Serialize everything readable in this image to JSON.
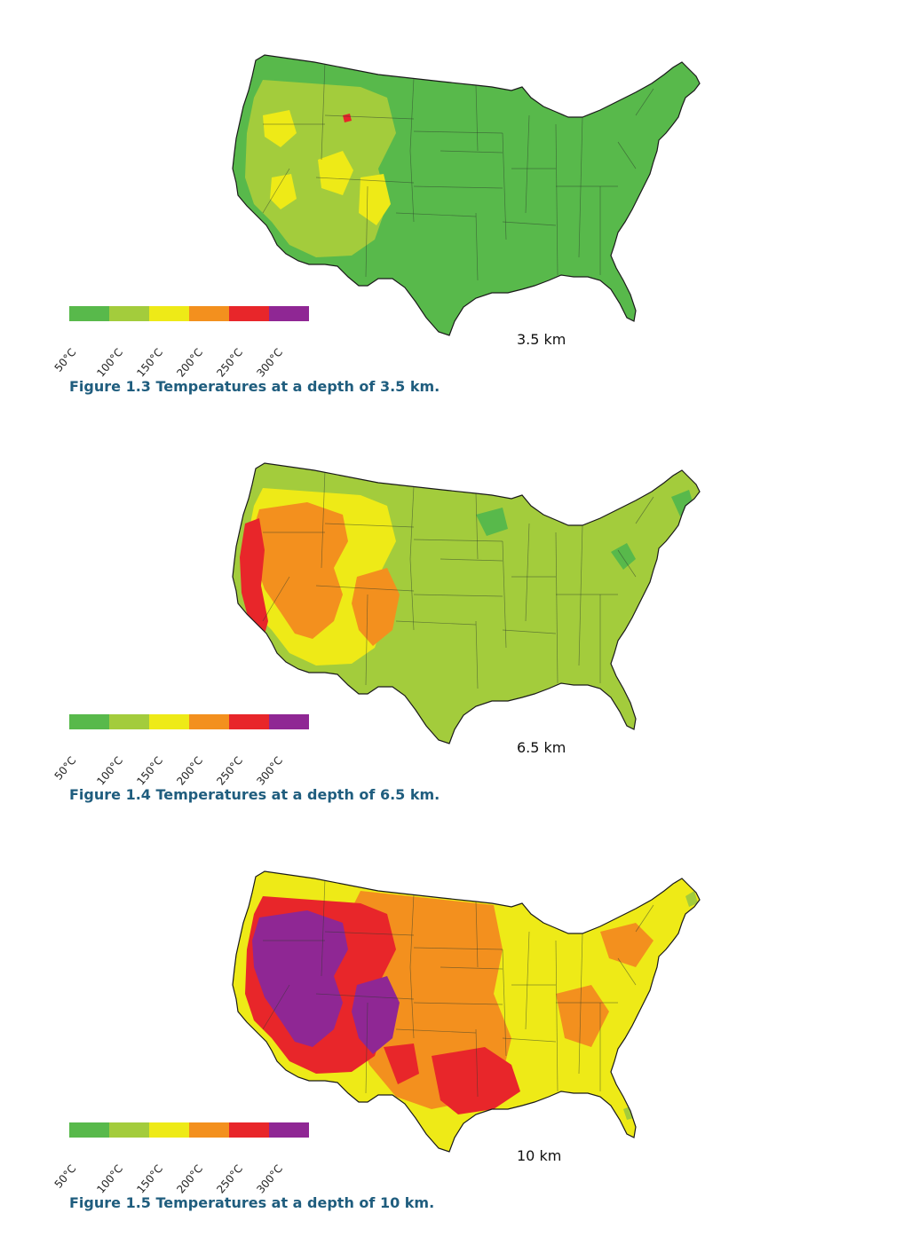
{
  "legend": {
    "colors": [
      "#58b94b",
      "#a3cc3c",
      "#eeea17",
      "#f3901e",
      "#e8262a",
      "#8f2794"
    ],
    "labels": [
      "50°C",
      "100°C",
      "150°C",
      "200°C",
      "250°C",
      "300°C"
    ]
  },
  "figures": [
    {
      "caption": "Figure 1.3 Temperatures at a depth of 3.5 km.",
      "depth_label": "3.5 km",
      "base_color": "#58b94b",
      "patches": [
        {
          "color": "#a3cc3c",
          "region": "west-broad"
        },
        {
          "color": "#eeea17",
          "region": "west-spots"
        },
        {
          "color": "#e8262a",
          "region": "yellowstone-dot"
        }
      ]
    },
    {
      "caption": "Figure 1.4 Temperatures at a depth of 6.5 km.",
      "depth_label": "6.5 km",
      "base_color": "#a3cc3c",
      "patches": [
        {
          "color": "#eeea17",
          "region": "west-broad"
        },
        {
          "color": "#f3901e",
          "region": "great-basin"
        },
        {
          "color": "#e8262a",
          "region": "california-strip"
        },
        {
          "color": "#58b94b",
          "region": "east-spots"
        }
      ]
    },
    {
      "caption": "Figure 1.5 Temperatures at a depth of 10 km.",
      "depth_label": "10 km",
      "base_color": "#eeea17",
      "patches": [
        {
          "color": "#f3901e",
          "region": "plains"
        },
        {
          "color": "#e8262a",
          "region": "west-broad"
        },
        {
          "color": "#8f2794",
          "region": "great-basin"
        },
        {
          "color": "#e8262a",
          "region": "gulf"
        },
        {
          "color": "#a3cc3c",
          "region": "coast-spots"
        }
      ]
    }
  ]
}
